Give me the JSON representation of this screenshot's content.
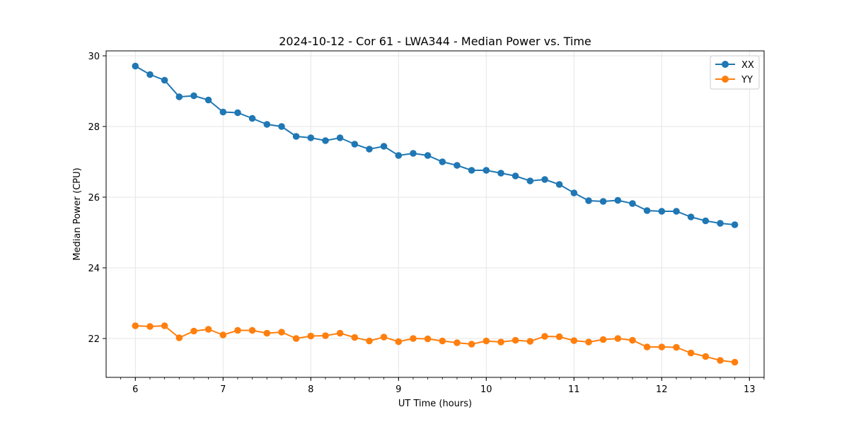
{
  "chart_data": {
    "type": "line",
    "title": "2024-10-12 - Cor 61 - LWA344 - Median Power vs. Time",
    "xlabel": "UT Time (hours)",
    "ylabel": "Median Power (CPU)",
    "xlim": [
      5.667,
      13.167
    ],
    "ylim": [
      20.9,
      30.14
    ],
    "xticks": [
      6,
      7,
      8,
      9,
      10,
      11,
      12,
      13
    ],
    "yticks": [
      22,
      24,
      26,
      28,
      30
    ],
    "grid": true,
    "legend_position": "top-right",
    "x": [
      6.0,
      6.167,
      6.333,
      6.5,
      6.667,
      6.833,
      7.0,
      7.167,
      7.333,
      7.5,
      7.667,
      7.833,
      8.0,
      8.167,
      8.333,
      8.5,
      8.667,
      8.833,
      9.0,
      9.167,
      9.333,
      9.5,
      9.667,
      9.833,
      10.0,
      10.167,
      10.333,
      10.5,
      10.667,
      10.833,
      11.0,
      11.167,
      11.333,
      11.5,
      11.667,
      11.833,
      12.0,
      12.167,
      12.333,
      12.5,
      12.667,
      12.833
    ],
    "series": [
      {
        "name": "XX",
        "color": "#1f77b4",
        "values": [
          29.71,
          29.47,
          29.31,
          28.84,
          28.87,
          28.75,
          28.41,
          28.39,
          28.23,
          28.06,
          28.0,
          27.72,
          27.68,
          27.6,
          27.68,
          27.5,
          27.36,
          27.44,
          27.18,
          27.24,
          27.18,
          27.0,
          26.9,
          26.76,
          26.76,
          26.68,
          26.6,
          26.46,
          26.5,
          26.36,
          26.12,
          25.9,
          25.88,
          25.91,
          25.82,
          25.62,
          25.6,
          25.6,
          25.44,
          25.33,
          25.26,
          25.22
        ]
      },
      {
        "name": "YY",
        "color": "#ff7f0e",
        "values": [
          22.36,
          22.34,
          22.36,
          22.02,
          22.21,
          22.26,
          22.1,
          22.23,
          22.23,
          22.15,
          22.18,
          22.0,
          22.07,
          22.08,
          22.15,
          22.03,
          21.93,
          22.04,
          21.91,
          22.0,
          21.99,
          21.93,
          21.88,
          21.84,
          21.93,
          21.9,
          21.95,
          21.92,
          22.06,
          22.05,
          21.94,
          21.9,
          21.97,
          22.0,
          21.95,
          21.76,
          21.76,
          21.75,
          21.59,
          21.49,
          21.38,
          21.33
        ]
      }
    ]
  }
}
